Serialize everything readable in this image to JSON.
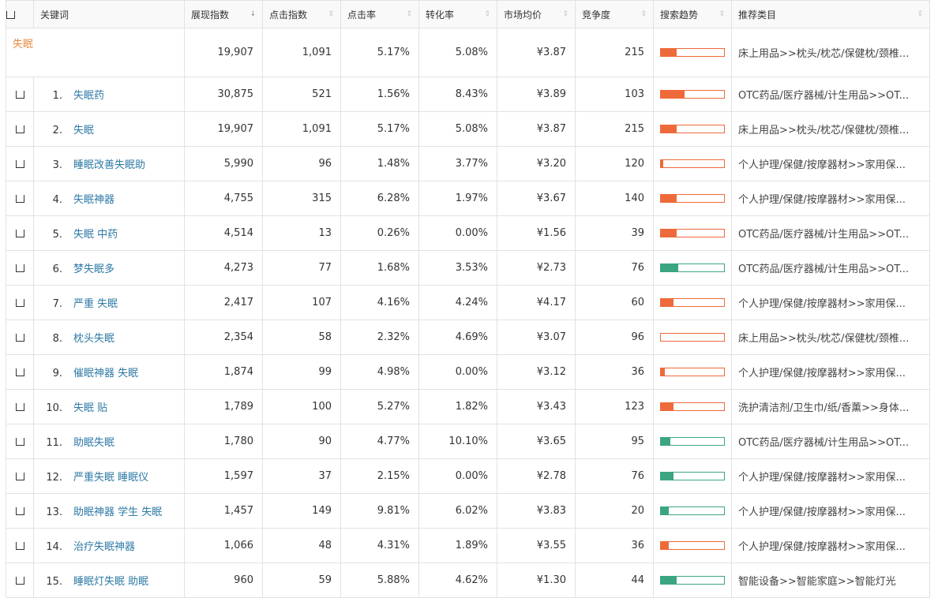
{
  "colors": {
    "trend_up": "#ee6a3a",
    "trend_down": "#3ba582",
    "summary_keyword": "#e8893e",
    "keyword_link": "#2e7aa6"
  },
  "headers": {
    "keyword": "关键词",
    "impressions": "展现指数",
    "clicks": "点击指数",
    "ctr": "点击率",
    "cvr": "转化率",
    "price": "市场均价",
    "competition": "竞争度",
    "trend": "搜索趋势",
    "category": "推荐类目"
  },
  "sort_icons": {
    "impressions": "↓",
    "other": "⇕"
  },
  "summary": {
    "keyword": "失眠",
    "impressions": "19,907",
    "clicks": "1,091",
    "ctr": "5.17%",
    "cvr": "5.08%",
    "price": "¥3.87",
    "competition": "215",
    "trend_dir": "up",
    "trend_level": 0.25,
    "category": "床上用品>>枕头/枕芯/保健枕/颈椎..."
  },
  "rows": [
    {
      "idx": "1.",
      "keyword": "失眠药",
      "impressions": "30,875",
      "clicks": "521",
      "ctr": "1.56%",
      "cvr": "8.43%",
      "price": "¥3.89",
      "competition": "103",
      "trend_dir": "up",
      "trend_level": 0.38,
      "category": "OTC药品/医疗器械/计生用品>>OT..."
    },
    {
      "idx": "2.",
      "keyword": "失眠",
      "impressions": "19,907",
      "clicks": "1,091",
      "ctr": "5.17%",
      "cvr": "5.08%",
      "price": "¥3.87",
      "competition": "215",
      "trend_dir": "up",
      "trend_level": 0.25,
      "category": "床上用品>>枕头/枕芯/保健枕/颈椎..."
    },
    {
      "idx": "3.",
      "keyword": "睡眠改善失眠助",
      "impressions": "5,990",
      "clicks": "96",
      "ctr": "1.48%",
      "cvr": "3.77%",
      "price": "¥3.20",
      "competition": "120",
      "trend_dir": "up",
      "trend_level": 0.04,
      "category": "个人护理/保健/按摩器材>>家用保..."
    },
    {
      "idx": "4.",
      "keyword": "失眠神器",
      "impressions": "4,755",
      "clicks": "315",
      "ctr": "6.28%",
      "cvr": "1.97%",
      "price": "¥3.67",
      "competition": "140",
      "trend_dir": "up",
      "trend_level": 0.25,
      "category": "个人护理/保健/按摩器材>>家用保..."
    },
    {
      "idx": "5.",
      "keyword": "失眠 中药",
      "impressions": "4,514",
      "clicks": "13",
      "ctr": "0.26%",
      "cvr": "0.00%",
      "price": "¥1.56",
      "competition": "39",
      "trend_dir": "up",
      "trend_level": 0.25,
      "category": "OTC药品/医疗器械/计生用品>>OT..."
    },
    {
      "idx": "6.",
      "keyword": "梦失眠多",
      "impressions": "4,273",
      "clicks": "77",
      "ctr": "1.68%",
      "cvr": "3.53%",
      "price": "¥2.73",
      "competition": "76",
      "trend_dir": "down",
      "trend_level": 0.27,
      "category": "OTC药品/医疗器械/计生用品>>OT..."
    },
    {
      "idx": "7.",
      "keyword": "严重 失眠",
      "impressions": "2,417",
      "clicks": "107",
      "ctr": "4.16%",
      "cvr": "4.24%",
      "price": "¥4.17",
      "competition": "60",
      "trend_dir": "up",
      "trend_level": 0.2,
      "category": "个人护理/保健/按摩器材>>家用保..."
    },
    {
      "idx": "8.",
      "keyword": "枕头失眠",
      "impressions": "2,354",
      "clicks": "58",
      "ctr": "2.32%",
      "cvr": "4.69%",
      "price": "¥3.07",
      "competition": "96",
      "trend_dir": "up",
      "trend_level": 0.0,
      "category": "床上用品>>枕头/枕芯/保健枕/颈椎..."
    },
    {
      "idx": "9.",
      "keyword": "催眠神器 失眠",
      "impressions": "1,874",
      "clicks": "99",
      "ctr": "4.98%",
      "cvr": "0.00%",
      "price": "¥3.12",
      "competition": "36",
      "trend_dir": "up",
      "trend_level": 0.06,
      "category": "个人护理/保健/按摩器材>>家用保..."
    },
    {
      "idx": "10.",
      "keyword": "失眠 贴",
      "impressions": "1,789",
      "clicks": "100",
      "ctr": "5.27%",
      "cvr": "1.82%",
      "price": "¥3.43",
      "competition": "123",
      "trend_dir": "up",
      "trend_level": 0.2,
      "category": "洗护清洁剂/卫生巾/纸/香薰>>身体..."
    },
    {
      "idx": "11.",
      "keyword": "助眠失眠",
      "impressions": "1,780",
      "clicks": "90",
      "ctr": "4.77%",
      "cvr": "10.10%",
      "price": "¥3.65",
      "competition": "95",
      "trend_dir": "down",
      "trend_level": 0.15,
      "category": "OTC药品/医疗器械/计生用品>>OT..."
    },
    {
      "idx": "12.",
      "keyword": "严重失眠 睡眠仪",
      "impressions": "1,597",
      "clicks": "37",
      "ctr": "2.15%",
      "cvr": "0.00%",
      "price": "¥2.78",
      "competition": "76",
      "trend_dir": "down",
      "trend_level": 0.2,
      "category": "个人护理/保健/按摩器材>>家用保..."
    },
    {
      "idx": "13.",
      "keyword": "助眠神器 学生 失眠",
      "impressions": "1,457",
      "clicks": "149",
      "ctr": "9.81%",
      "cvr": "6.02%",
      "price": "¥3.83",
      "competition": "20",
      "trend_dir": "down",
      "trend_level": 0.13,
      "category": "个人护理/保健/按摩器材>>家用保..."
    },
    {
      "idx": "14.",
      "keyword": "治疗失眠神器",
      "impressions": "1,066",
      "clicks": "48",
      "ctr": "4.31%",
      "cvr": "1.89%",
      "price": "¥3.55",
      "competition": "36",
      "trend_dir": "up",
      "trend_level": 0.13,
      "category": "个人护理/保健/按摩器材>>家用保..."
    },
    {
      "idx": "15.",
      "keyword": "睡眠灯失眠 助眠",
      "impressions": "960",
      "clicks": "59",
      "ctr": "5.88%",
      "cvr": "4.62%",
      "price": "¥1.30",
      "competition": "44",
      "trend_dir": "down",
      "trend_level": 0.25,
      "category": "智能设备>>智能家庭>>智能灯光"
    }
  ]
}
